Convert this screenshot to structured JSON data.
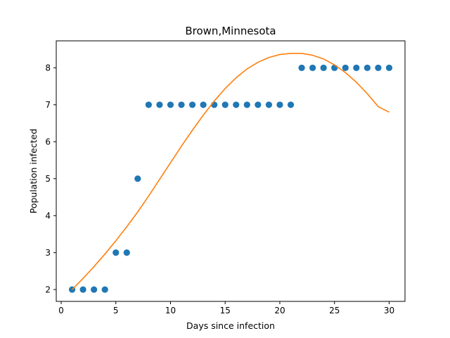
{
  "chart_data": {
    "type": "scatter",
    "title": "Brown,Minnesota",
    "xlabel": "Days since infection",
    "ylabel": "Population infected",
    "xlim": [
      -0.45,
      31.45
    ],
    "ylim": [
      1.68,
      8.73
    ],
    "xticks": [
      0,
      5,
      10,
      15,
      20,
      25,
      30
    ],
    "yticks": [
      2,
      3,
      4,
      5,
      6,
      7,
      8
    ],
    "grid": false,
    "series": [
      {
        "kind": "points",
        "color": "#1f77b4",
        "x": [
          1,
          2,
          3,
          4,
          5,
          6,
          7,
          8,
          9,
          10,
          11,
          12,
          13,
          14,
          15,
          16,
          17,
          18,
          19,
          20,
          21,
          22,
          23,
          24,
          25,
          26,
          27,
          28,
          29,
          30
        ],
        "y": [
          2,
          2,
          2,
          2,
          3,
          3,
          5,
          7,
          7,
          7,
          7,
          7,
          7,
          7,
          7,
          7,
          7,
          7,
          7,
          7,
          7,
          8,
          8,
          8,
          8,
          8,
          8,
          8,
          8,
          8
        ]
      },
      {
        "kind": "line",
        "color": "#ff7f0e",
        "x": [
          1,
          2,
          3,
          4,
          5,
          6,
          7,
          8,
          9,
          10,
          11,
          12,
          13,
          14,
          15,
          16,
          17,
          18,
          19,
          20,
          21,
          22,
          23,
          24,
          25,
          26,
          27,
          28,
          29,
          30
        ],
        "y": [
          2.0,
          2.3,
          2.62,
          2.96,
          3.32,
          3.7,
          4.1,
          4.53,
          4.98,
          5.43,
          5.88,
          6.31,
          6.72,
          7.1,
          7.44,
          7.73,
          7.97,
          8.15,
          8.28,
          8.36,
          8.39,
          8.39,
          8.34,
          8.24,
          8.08,
          7.87,
          7.61,
          7.3,
          6.95,
          6.8
        ]
      }
    ]
  }
}
